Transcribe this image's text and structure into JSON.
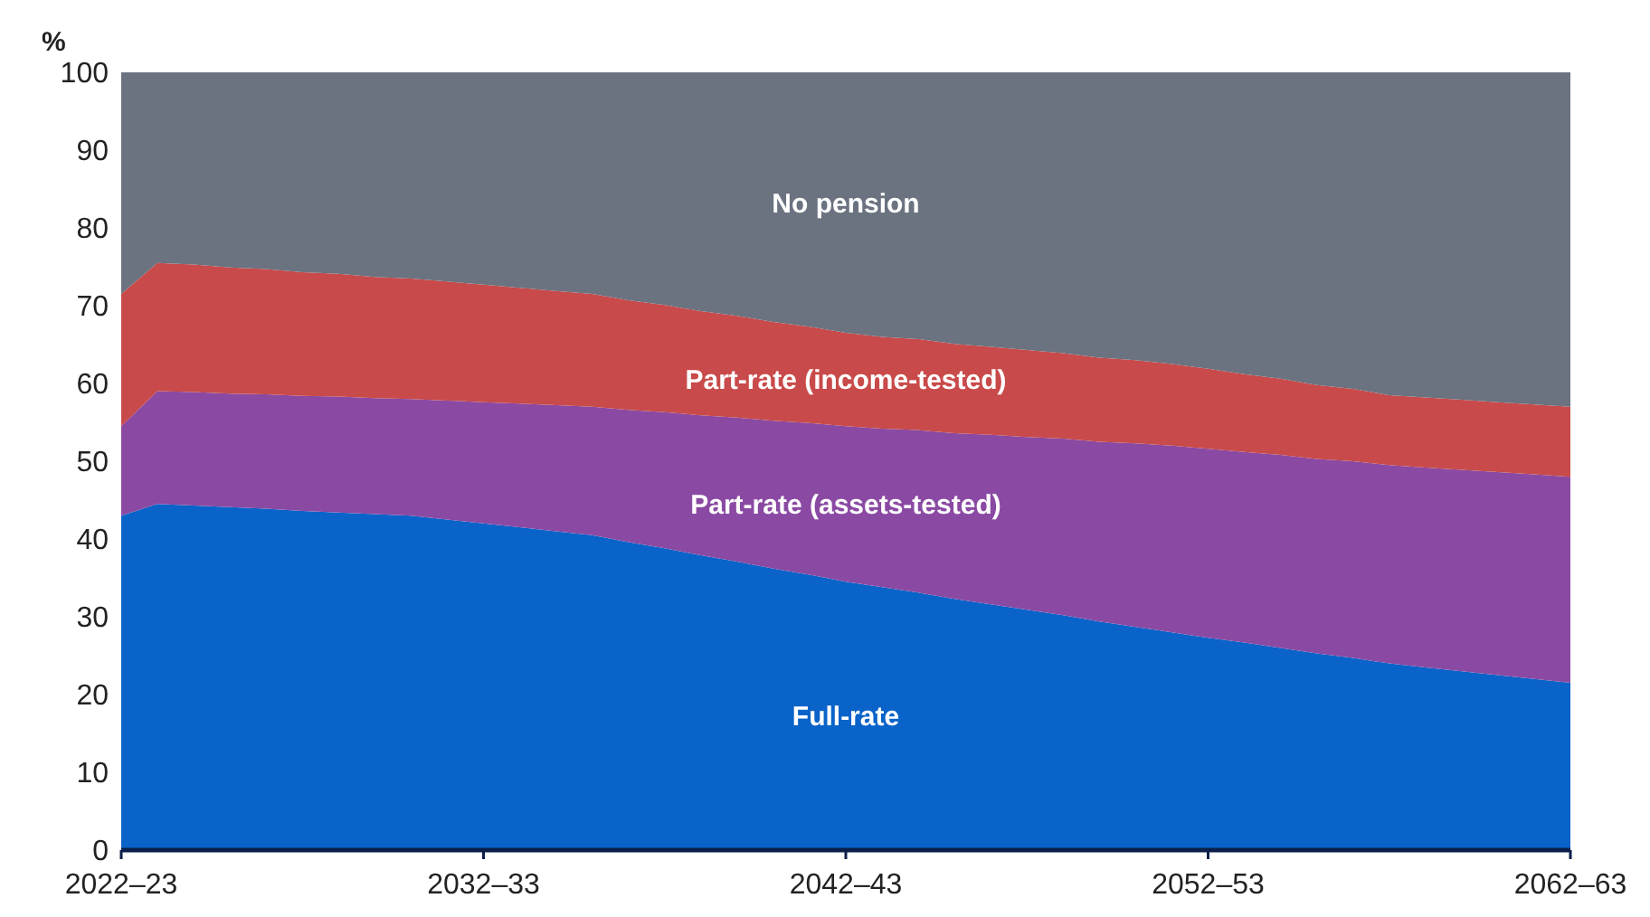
{
  "chart_data": {
    "type": "area",
    "stacked": true,
    "ylabel": "%",
    "categories": [
      "2022–23",
      null,
      null,
      null,
      null,
      null,
      null,
      null,
      null,
      null,
      "2032–33",
      null,
      null,
      null,
      null,
      null,
      null,
      null,
      null,
      null,
      "2042–43",
      null,
      null,
      null,
      null,
      null,
      null,
      null,
      null,
      null,
      "2052–53",
      null,
      null,
      null,
      null,
      null,
      null,
      null,
      null,
      null,
      "2062–63"
    ],
    "ylim": [
      0,
      100
    ],
    "yticks": [
      0,
      10,
      20,
      30,
      40,
      50,
      60,
      70,
      80,
      90,
      100
    ],
    "grid": false,
    "legend": false,
    "series": [
      {
        "name": "Full-rate",
        "color": "#0a63c9",
        "values": [
          43,
          44.5,
          44.3,
          44.1,
          43.9,
          43.6,
          43.4,
          43.2,
          43,
          42.5,
          42,
          41.5,
          41,
          40.5,
          39.6,
          38.8,
          37.9,
          37.1,
          36.2,
          35.4,
          34.5,
          33.8,
          33.1,
          32.3,
          31.6,
          30.9,
          30.2,
          29.4,
          28.7,
          28,
          27.3,
          26.7,
          26,
          25.3,
          24.7,
          24,
          23.5,
          23,
          22.5,
          22,
          21.5
        ]
      },
      {
        "name": "Part-rate (assets-tested)",
        "color": "#8a4aa3",
        "values": [
          11.5,
          14.5,
          14.6,
          14.6,
          14.7,
          14.8,
          14.9,
          14.9,
          15,
          15.3,
          15.6,
          15.9,
          16.2,
          16.5,
          17,
          17.5,
          18,
          18.5,
          19,
          19.5,
          20,
          20.4,
          20.9,
          21.3,
          21.8,
          22.2,
          22.7,
          23.1,
          23.6,
          24,
          24.3,
          24.5,
          24.8,
          25,
          25.3,
          25.5,
          25.7,
          25.9,
          26.1,
          26.3,
          26.5
        ]
      },
      {
        "name": "Part-rate (income-tested)",
        "color": "#c94a4a",
        "values": [
          17,
          16.5,
          16.4,
          16.2,
          16.1,
          15.9,
          15.8,
          15.6,
          15.5,
          15.3,
          15.1,
          14.9,
          14.7,
          14.5,
          14.1,
          13.8,
          13.4,
          13.1,
          12.7,
          12.4,
          12,
          11.8,
          11.7,
          11.5,
          11.3,
          11.2,
          11,
          10.8,
          10.7,
          10.5,
          10.3,
          10,
          9.8,
          9.5,
          9.3,
          9,
          9,
          9,
          9,
          9,
          9
        ]
      },
      {
        "name": "No pension",
        "color": "#6b7280",
        "values": [
          28.5,
          24.5,
          24.7,
          25.1,
          25.3,
          25.7,
          25.9,
          26.3,
          26.5,
          26.9,
          27.3,
          27.7,
          28.1,
          28.5,
          29.3,
          29.9,
          30.7,
          31.3,
          32.1,
          32.7,
          33.5,
          34,
          34.3,
          34.9,
          35.3,
          35.7,
          36.1,
          36.7,
          37,
          37.5,
          38.1,
          38.8,
          39.4,
          40.2,
          40.7,
          41.5,
          41.8,
          42.1,
          42.4,
          42.7,
          43
        ]
      }
    ]
  }
}
